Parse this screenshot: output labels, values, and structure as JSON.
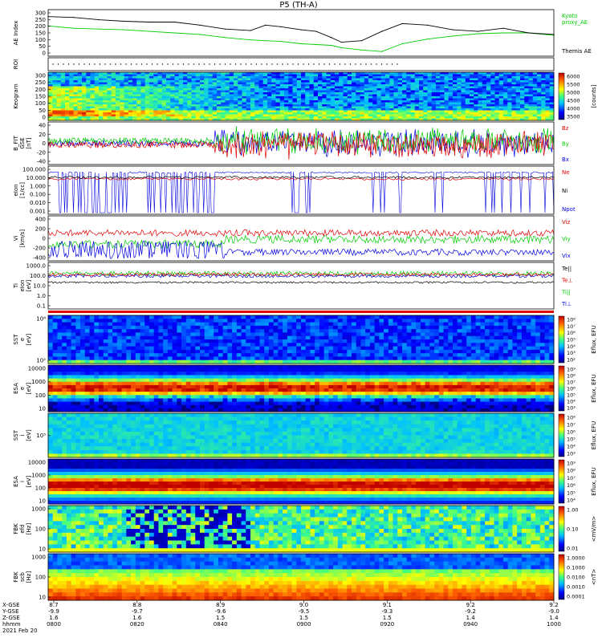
{
  "title": "P5 (TH-A)",
  "colors": {
    "black": "#000000",
    "green": "#00cc00",
    "red": "#e00000",
    "blue": "#0000e0"
  },
  "chart_data": [
    {
      "id": "ae",
      "type": "line",
      "ylabel": "AE Index",
      "ylim": [
        0,
        300
      ],
      "yticks": [
        "300",
        "250",
        "200",
        "150",
        "100",
        "50",
        "0"
      ],
      "legend": [
        {
          "name": "Kyoto\nproxy_AE",
          "color": "#00cc00"
        },
        {
          "name": "Themis AE",
          "color": "#000000"
        }
      ],
      "series": [
        {
          "name": "Kyoto proxy_AE",
          "color": "#00cc00",
          "x": [
            0,
            5,
            10,
            15,
            20,
            25,
            30,
            35,
            40,
            43,
            46,
            50,
            53,
            56,
            58,
            62,
            66,
            70,
            75,
            80,
            85,
            90,
            95,
            100
          ],
          "values": [
            195,
            180,
            175,
            170,
            160,
            150,
            140,
            120,
            105,
            100,
            95,
            80,
            75,
            70,
            55,
            40,
            30,
            80,
            110,
            130,
            145,
            150,
            150,
            135
          ]
        },
        {
          "name": "Themis AE",
          "color": "#000000",
          "x": [
            0,
            5,
            10,
            15,
            20,
            25,
            30,
            35,
            40,
            43,
            46,
            50,
            53,
            56,
            58,
            62,
            66,
            70,
            75,
            80,
            85,
            90,
            95,
            100
          ],
          "values": [
            255,
            250,
            235,
            225,
            220,
            220,
            200,
            175,
            165,
            200,
            190,
            170,
            160,
            120,
            90,
            100,
            160,
            210,
            200,
            170,
            160,
            180,
            150,
            140
          ]
        }
      ]
    },
    {
      "id": "roi",
      "type": "line",
      "ylabel": "ROI",
      "dotted_until": 0.7
    },
    {
      "id": "keogram",
      "type": "heatmap",
      "ylabel": "Keogram",
      "ylim": [
        0,
        300
      ],
      "yticks": [
        "300",
        "250",
        "200",
        "150",
        "100",
        "50",
        "0"
      ],
      "colorbar": {
        "label": "[counts]",
        "ticks": [
          "6000",
          "5500",
          "5000",
          "4500",
          "4000",
          "3500"
        ]
      }
    },
    {
      "id": "bfield",
      "type": "line",
      "ylabel": "B_FIT\nGSE\n[nT]",
      "ylim": [
        -40,
        40
      ],
      "yticks": [
        "40",
        "20",
        "0",
        "-20",
        "-40"
      ],
      "legend": [
        {
          "name": "Bz",
          "color": "#e00000"
        },
        {
          "name": "By",
          "color": "#00cc00"
        },
        {
          "name": "Bx",
          "color": "#0000e0"
        }
      ]
    },
    {
      "id": "density",
      "type": "line",
      "ylabel": "eIon\n[1/cc]",
      "scale": "log",
      "yticks": [
        "100.000",
        "10.000",
        "1.000",
        "0.100",
        "0.010",
        "0.001"
      ],
      "legend": [
        {
          "name": "Ne",
          "color": "#e00000"
        },
        {
          "name": "Ni",
          "color": "#000000"
        },
        {
          "name": "Npot",
          "color": "#0000e0"
        }
      ]
    },
    {
      "id": "velocity",
      "type": "line",
      "ylabel": "Vi\n[km/s]",
      "ylim": [
        -400,
        400
      ],
      "yticks": [
        "400",
        "200",
        "0",
        "-200",
        "-400"
      ],
      "legend": [
        {
          "name": "Viz",
          "color": "#e00000"
        },
        {
          "name": "Viy",
          "color": "#00cc00"
        },
        {
          "name": "Vix",
          "color": "#0000e0"
        }
      ]
    },
    {
      "id": "temperature",
      "type": "line",
      "ylabel": "Ti\neIon\n[eV]",
      "scale": "log",
      "yticks": [
        "1000.0",
        "100.0",
        "10.0",
        "1.0",
        "0.1"
      ],
      "legend": [
        {
          "name": "Te||",
          "color": "#000000"
        },
        {
          "name": "Te⊥",
          "color": "#e00000"
        },
        {
          "name": "Ti||",
          "color": "#00cc00"
        },
        {
          "name": "Ti⊥",
          "color": "#0000e0"
        }
      ]
    },
    {
      "id": "sst_e",
      "type": "heatmap",
      "ylabel": "SST\ne\n[eV]",
      "yticks": [
        "10⁴",
        "10²"
      ],
      "colorbar": {
        "label": "Eflux, EFU",
        "ticks": [
          "10⁸",
          "10⁷",
          "10⁶",
          "10⁵",
          "10⁴",
          "10³",
          "10²"
        ]
      }
    },
    {
      "id": "esa_e",
      "type": "heatmap",
      "ylabel": "ESA\ne\n[eV]",
      "yticks": [
        "10000",
        "1000",
        "100",
        "10"
      ],
      "colorbar": {
        "label": "Eflux, EFU",
        "ticks": [
          "10⁹",
          "10⁸",
          "10⁷",
          "10⁶",
          "10⁵",
          "10⁴",
          "10³"
        ]
      }
    },
    {
      "id": "sst_i",
      "type": "heatmap",
      "ylabel": "SST\ni\n[eV]",
      "yticks": [
        "10⁵"
      ],
      "colorbar": {
        "label": "Eflux, EFU",
        "ticks": [
          "10⁸",
          "10⁷",
          "10⁶",
          "10⁵",
          "10⁴",
          "10³"
        ]
      }
    },
    {
      "id": "esa_i",
      "type": "heatmap",
      "ylabel": "ESA\ni\n[eV]",
      "yticks": [
        "10000",
        "1000",
        "100",
        "10"
      ],
      "colorbar": {
        "label": "Eflux, EFU",
        "ticks": [
          "10⁹",
          "10⁸",
          "10⁷",
          "10⁶",
          "10⁵",
          "10⁴"
        ]
      }
    },
    {
      "id": "fbk_e",
      "type": "heatmap",
      "ylabel": "FBK\nefd\n[Hz]",
      "yticks": [
        "1000",
        "100",
        "10"
      ],
      "colorbar": {
        "label": "<mV/m>",
        "ticks": [
          "1.00",
          "0.10",
          "0.01"
        ]
      }
    },
    {
      "id": "fbk_b",
      "type": "heatmap",
      "ylabel": "FBK\nscb\n[Hz]",
      "yticks": [
        "1000",
        "100",
        "10"
      ],
      "colorbar": {
        "label": "<nT>",
        "ticks": [
          "1.0000",
          "0.1000",
          "0.0100",
          "0.0010",
          "0.0001"
        ]
      }
    }
  ],
  "xaxis": {
    "row_labels": [
      "X-GSE",
      "Y-GSE",
      "Z-GSE",
      "hhmm",
      "2021 Feb 20"
    ],
    "ticks": [
      {
        "x": "8.7",
        "y": "-9.9",
        "z": "1.6",
        "t": "0800"
      },
      {
        "x": "8.8",
        "y": "-9.7",
        "z": "1.6",
        "t": "0820"
      },
      {
        "x": "8.9",
        "y": "-9.6",
        "z": "1.5",
        "t": "0840"
      },
      {
        "x": "9.0",
        "y": "-9.5",
        "z": "1.5",
        "t": "0900"
      },
      {
        "x": "9.1",
        "y": "-9.3",
        "z": "1.5",
        "t": "0920"
      },
      {
        "x": "9.2",
        "y": "-9.2",
        "z": "1.4",
        "t": "0940"
      },
      {
        "x": "9.2",
        "y": "-9.0",
        "z": "1.4",
        "t": "1000"
      }
    ]
  }
}
